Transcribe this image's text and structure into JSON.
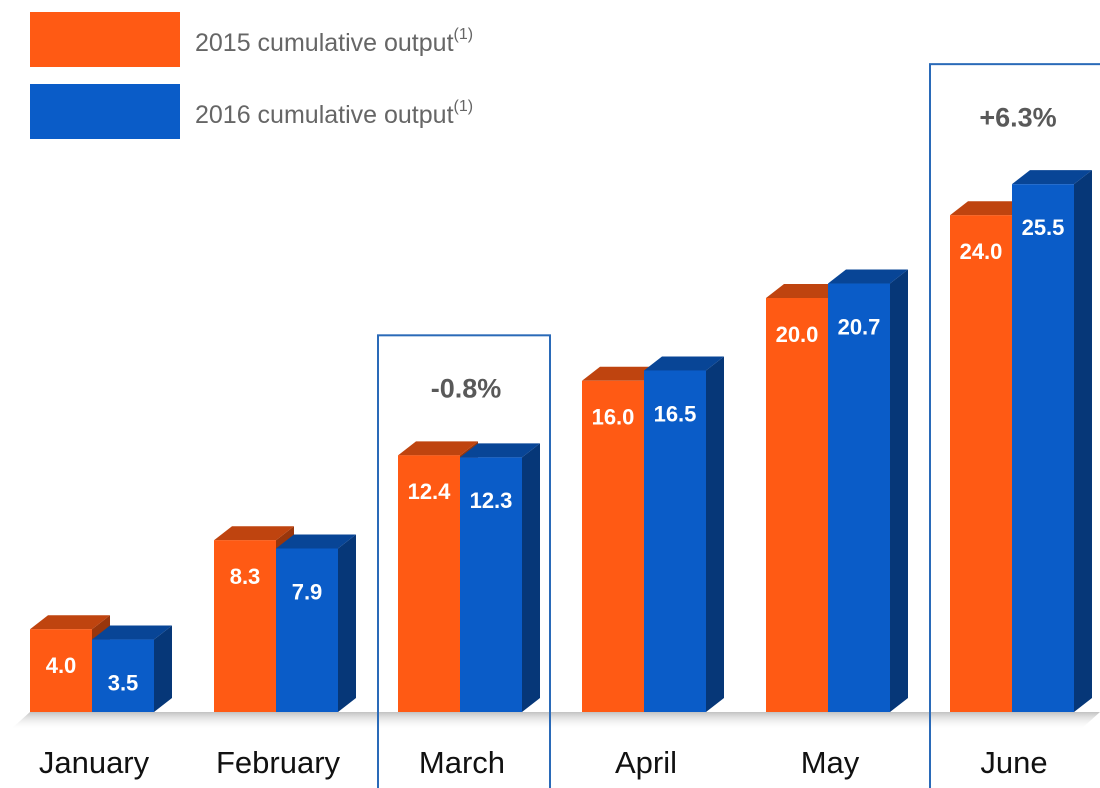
{
  "chart_data": {
    "type": "bar",
    "categories": [
      "January",
      "February",
      "March",
      "April",
      "May",
      "June"
    ],
    "series": [
      {
        "name": "2015 cumulative output",
        "note": "(1)",
        "color": "#ff5a14",
        "values": [
          4.0,
          8.3,
          12.4,
          16.0,
          20.0,
          24.0
        ],
        "value_labels": [
          "4.0",
          "8.3",
          "12.4",
          "16.0",
          "20.0",
          "24.0"
        ]
      },
      {
        "name": "2016 cumulative output",
        "note": "(1)",
        "color": "#0a5cc8",
        "values": [
          3.5,
          7.9,
          12.3,
          16.5,
          20.7,
          25.5
        ],
        "value_labels": [
          "3.5",
          "7.9",
          "12.3",
          "16.5",
          "20.7",
          "25.5"
        ]
      }
    ],
    "annotations": [
      {
        "category": "March",
        "text": "-0.8%"
      },
      {
        "category": "June",
        "text": "+6.3%"
      }
    ]
  }
}
